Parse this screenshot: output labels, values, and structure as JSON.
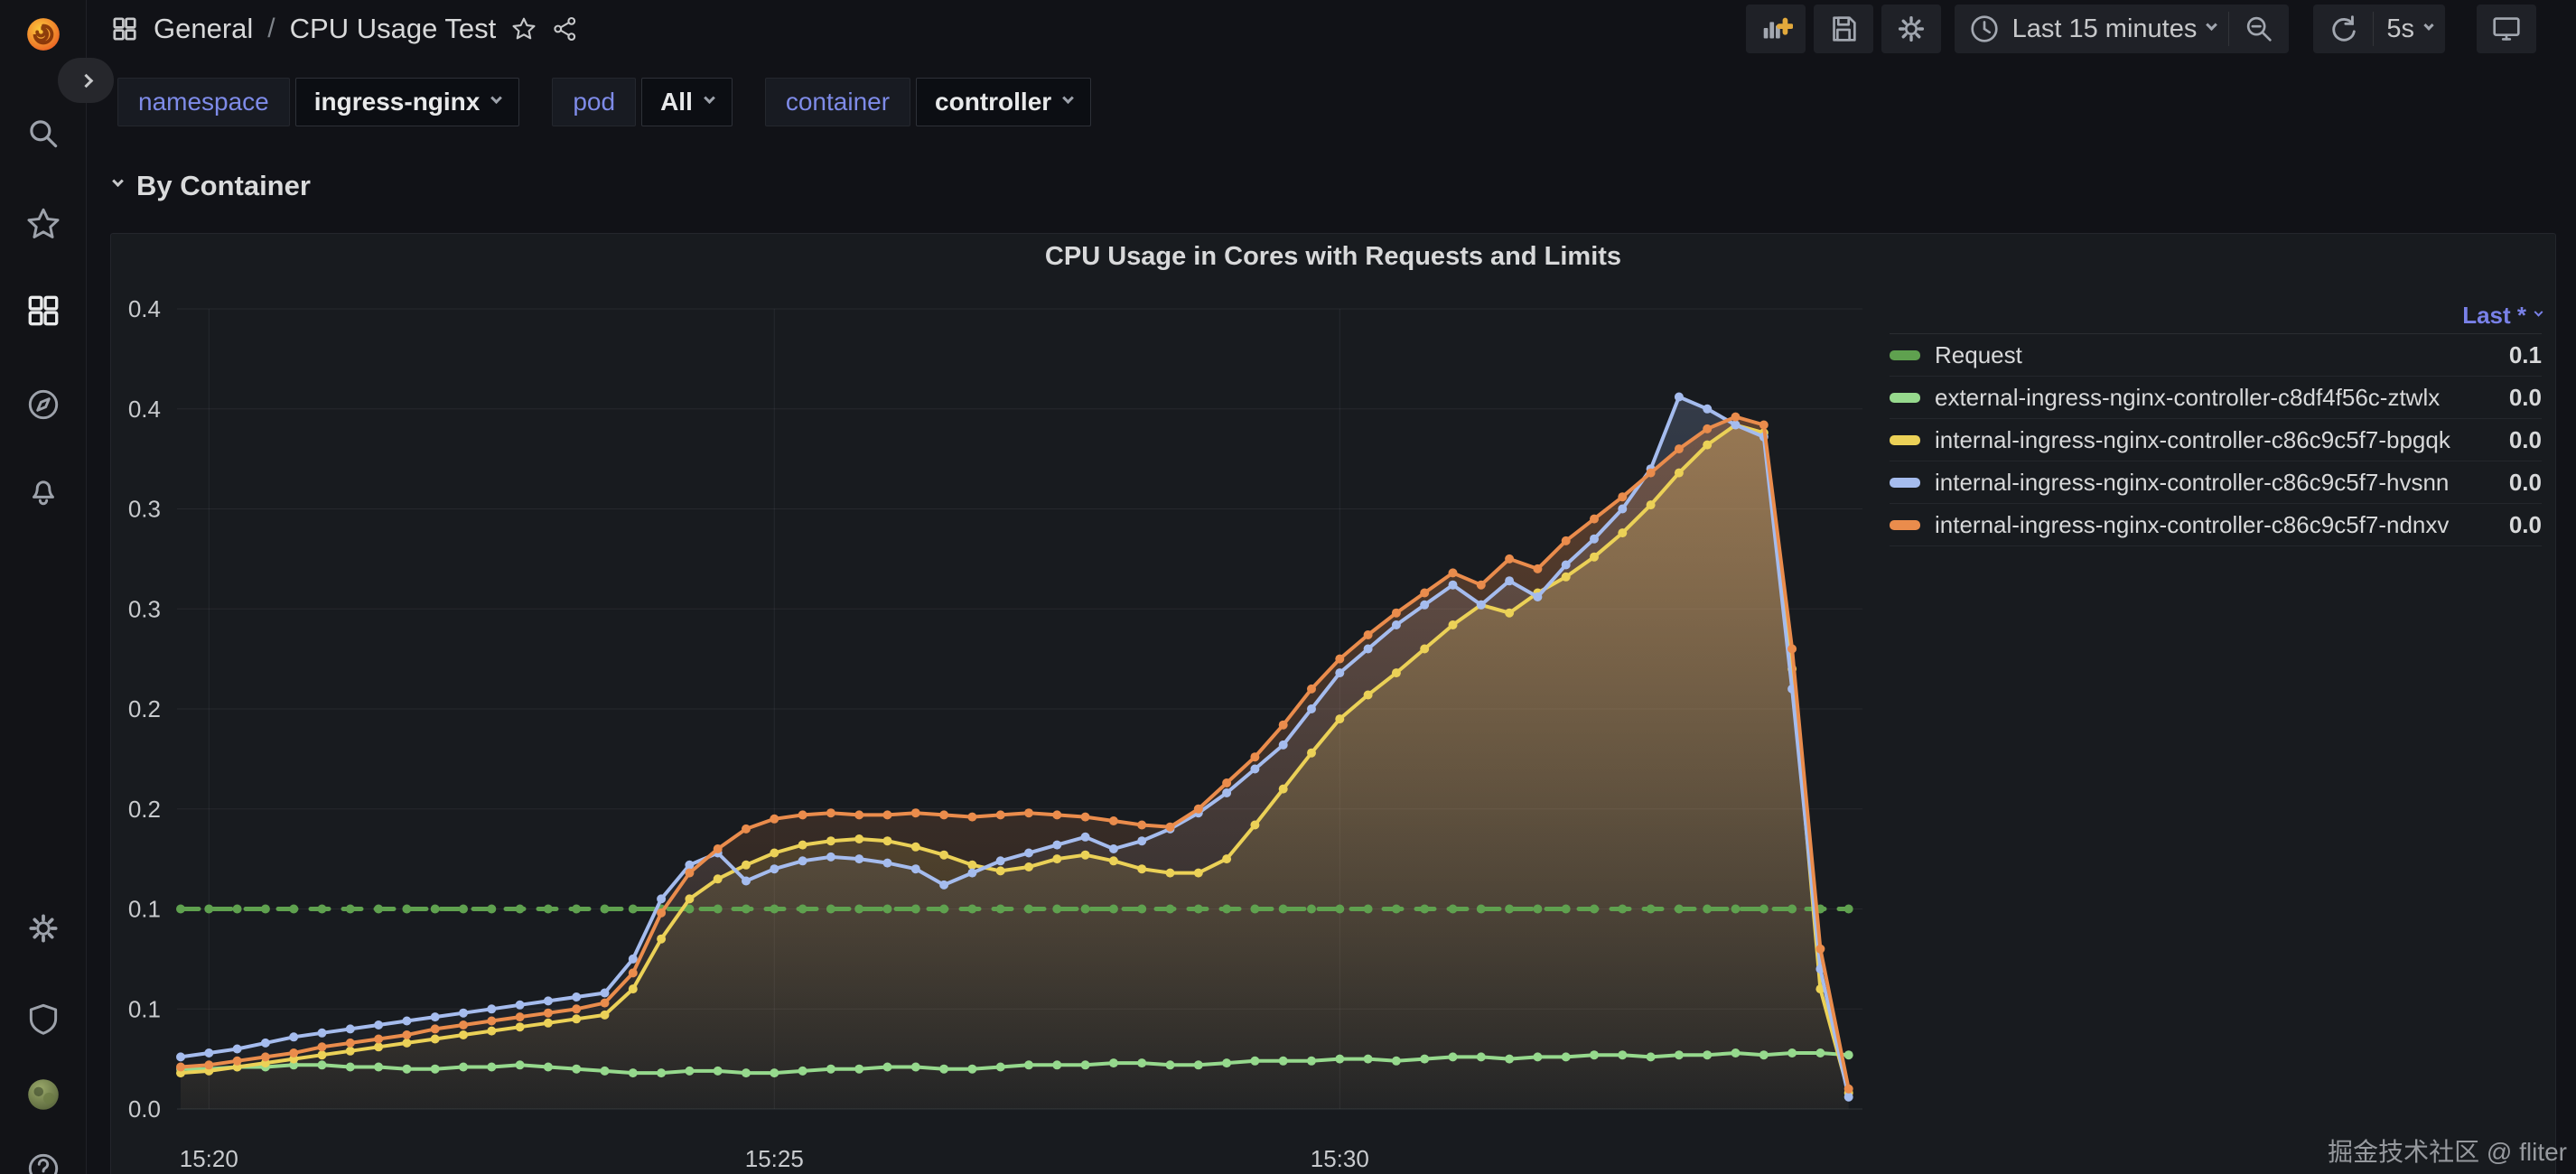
{
  "app": {
    "name": "Grafana dashboard"
  },
  "sidebar": {
    "items": [
      {
        "icon": "grafana-logo-icon"
      },
      {
        "icon": "sidebar-expand-icon"
      },
      {
        "icon": "search-icon"
      },
      {
        "icon": "starred-icon"
      },
      {
        "icon": "dashboards-icon",
        "active": true
      },
      {
        "icon": "explore-compass-icon"
      },
      {
        "icon": "alerting-bell-icon"
      },
      {
        "icon": "configuration-gear-icon"
      },
      {
        "icon": "server-admin-shield-icon"
      },
      {
        "icon": "user-avatar"
      },
      {
        "icon": "help-icon"
      }
    ]
  },
  "breadcrumb": {
    "icon": "apps-grid-icon",
    "section": "General",
    "separator": "/",
    "title": "CPU Usage Test"
  },
  "toolbar": {
    "buttons": [
      {
        "icon": "add-panel-icon"
      },
      {
        "icon": "save-dashboard-icon"
      },
      {
        "icon": "dashboard-settings-icon"
      }
    ],
    "time_picker": {
      "icon": "clock-icon",
      "label": "Last 15 minutes"
    },
    "zoom_out": {
      "icon": "zoom-out-icon"
    },
    "refresh": {
      "icon": "refresh-icon",
      "interval": "5s"
    },
    "view_mode": {
      "icon": "monitor-icon"
    }
  },
  "variables": [
    {
      "label": "namespace",
      "value": "ingress-nginx"
    },
    {
      "label": "pod",
      "value": "All"
    },
    {
      "label": "container",
      "value": "controller"
    }
  ],
  "section": {
    "title": "By Container"
  },
  "panel": {
    "title": "CPU Usage in Cores with Requests and Limits"
  },
  "legend": {
    "header": "Last *",
    "rows": [
      {
        "label": "Request",
        "value": "0.1",
        "color": "#5FA14F"
      },
      {
        "label": "external-ingress-nginx-controller-c8df4f56c-ztwlx",
        "value": "0.0",
        "color": "#96D98D"
      },
      {
        "label": "internal-ingress-nginx-controller-c86c9c5f7-bpgqk",
        "value": "0.0",
        "color": "#EBD157"
      },
      {
        "label": "internal-ingress-nginx-controller-c86c9c5f7-hvsnn",
        "value": "0.0",
        "color": "#A5BCEE"
      },
      {
        "label": "internal-ingress-nginx-controller-c86c9c5f7-ndnxv",
        "value": "0.0",
        "color": "#EA8C4C"
      }
    ]
  },
  "watermark": {
    "text": "掘金技术社区 @ fliter"
  },
  "chart_data": {
    "type": "line",
    "title": "CPU Usage in Cores with Requests and Limits",
    "time_start": "15:19:45",
    "time_interval": "15s",
    "grid": true,
    "legend_position": "right",
    "y_axis": {
      "max": 0.4,
      "min": 0.0,
      "ticks": [
        {
          "label": "0.4",
          "value": 0.4
        },
        {
          "label": "0.4",
          "value": 0.35
        },
        {
          "label": "0.3",
          "value": 0.3
        },
        {
          "label": "0.3",
          "value": 0.25
        },
        {
          "label": "0.2",
          "value": 0.2
        },
        {
          "label": "0.2",
          "value": 0.15
        },
        {
          "label": "0.1",
          "value": 0.1
        },
        {
          "label": "0.1",
          "value": 0.05
        },
        {
          "label": "0.0",
          "value": 0.0
        }
      ]
    },
    "x_axis": {
      "ticks": [
        {
          "label": "15:20",
          "index": 1
        },
        {
          "label": "15:25",
          "index": 21
        },
        {
          "label": "15:30",
          "index": 41
        }
      ]
    },
    "series": [
      {
        "name": "Request",
        "color": "#5FA14F",
        "dash": "20 16",
        "width": 5,
        "fill": false,
        "values": [
          0.1,
          0.1,
          0.1,
          0.1,
          0.1,
          0.1,
          0.1,
          0.1,
          0.1,
          0.1,
          0.1,
          0.1,
          0.1,
          0.1,
          0.1,
          0.1,
          0.1,
          0.1,
          0.1,
          0.1,
          0.1,
          0.1,
          0.1,
          0.1,
          0.1,
          0.1,
          0.1,
          0.1,
          0.1,
          0.1,
          0.1,
          0.1,
          0.1,
          0.1,
          0.1,
          0.1,
          0.1,
          0.1,
          0.1,
          0.1,
          0.1,
          0.1,
          0.1,
          0.1,
          0.1,
          0.1,
          0.1,
          0.1,
          0.1,
          0.1,
          0.1,
          0.1,
          0.1,
          0.1,
          0.1,
          0.1,
          0.1,
          0.1,
          0.1,
          0.1
        ]
      },
      {
        "name": "external-ingress-nginx-controller-c8df4f56c-ztwlx",
        "color": "#96D98D",
        "dash": null,
        "width": 4,
        "fill": false,
        "values": [
          0.02,
          0.02,
          0.021,
          0.021,
          0.022,
          0.022,
          0.021,
          0.021,
          0.02,
          0.02,
          0.021,
          0.021,
          0.022,
          0.021,
          0.02,
          0.019,
          0.018,
          0.018,
          0.019,
          0.019,
          0.018,
          0.018,
          0.019,
          0.02,
          0.02,
          0.021,
          0.021,
          0.02,
          0.02,
          0.021,
          0.022,
          0.022,
          0.022,
          0.023,
          0.023,
          0.022,
          0.022,
          0.023,
          0.024,
          0.024,
          0.024,
          0.025,
          0.025,
          0.024,
          0.025,
          0.026,
          0.026,
          0.025,
          0.026,
          0.026,
          0.027,
          0.027,
          0.026,
          0.027,
          0.027,
          0.028,
          0.027,
          0.028,
          0.028,
          0.027
        ]
      },
      {
        "name": "internal-ingress-nginx-controller-c86c9c5f7-bpgqk",
        "color": "#EBD157",
        "dash": null,
        "width": 4,
        "fill": true,
        "fill_opacity": 0.4,
        "values": [
          0.018,
          0.019,
          0.021,
          0.023,
          0.025,
          0.027,
          0.029,
          0.031,
          0.033,
          0.035,
          0.037,
          0.039,
          0.041,
          0.043,
          0.045,
          0.047,
          0.06,
          0.085,
          0.105,
          0.115,
          0.122,
          0.128,
          0.132,
          0.134,
          0.135,
          0.134,
          0.131,
          0.127,
          0.122,
          0.119,
          0.121,
          0.125,
          0.127,
          0.124,
          0.12,
          0.118,
          0.118,
          0.125,
          0.142,
          0.16,
          0.178,
          0.195,
          0.207,
          0.218,
          0.23,
          0.242,
          0.252,
          0.248,
          0.258,
          0.266,
          0.276,
          0.288,
          0.302,
          0.318,
          0.332,
          0.342,
          0.338,
          0.22,
          0.06,
          0.008
        ]
      },
      {
        "name": "internal-ingress-nginx-controller-c86c9c5f7-hvsnn",
        "color": "#A5BCEE",
        "dash": null,
        "width": 4,
        "fill": true,
        "fill_opacity": 0.22,
        "values": [
          0.026,
          0.028,
          0.03,
          0.033,
          0.036,
          0.038,
          0.04,
          0.042,
          0.044,
          0.046,
          0.048,
          0.05,
          0.052,
          0.054,
          0.056,
          0.058,
          0.075,
          0.105,
          0.122,
          0.128,
          0.114,
          0.12,
          0.124,
          0.126,
          0.125,
          0.123,
          0.12,
          0.112,
          0.118,
          0.124,
          0.128,
          0.132,
          0.136,
          0.13,
          0.134,
          0.14,
          0.148,
          0.158,
          0.17,
          0.182,
          0.2,
          0.218,
          0.23,
          0.242,
          0.252,
          0.262,
          0.252,
          0.264,
          0.256,
          0.272,
          0.285,
          0.3,
          0.32,
          0.356,
          0.35,
          0.342,
          0.336,
          0.21,
          0.07,
          0.006
        ]
      },
      {
        "name": "internal-ingress-nginx-controller-c86c9c5f7-ndnxv",
        "color": "#EA8C4C",
        "dash": null,
        "width": 4,
        "fill": true,
        "fill_opacity": 0.38,
        "values": [
          0.021,
          0.022,
          0.024,
          0.026,
          0.028,
          0.031,
          0.033,
          0.035,
          0.037,
          0.04,
          0.042,
          0.044,
          0.046,
          0.048,
          0.05,
          0.053,
          0.068,
          0.098,
          0.118,
          0.13,
          0.14,
          0.145,
          0.147,
          0.148,
          0.147,
          0.147,
          0.148,
          0.147,
          0.146,
          0.147,
          0.148,
          0.147,
          0.146,
          0.144,
          0.142,
          0.141,
          0.15,
          0.163,
          0.176,
          0.192,
          0.21,
          0.225,
          0.237,
          0.248,
          0.258,
          0.268,
          0.262,
          0.275,
          0.27,
          0.284,
          0.295,
          0.306,
          0.318,
          0.33,
          0.34,
          0.346,
          0.342,
          0.23,
          0.08,
          0.01
        ]
      }
    ]
  }
}
